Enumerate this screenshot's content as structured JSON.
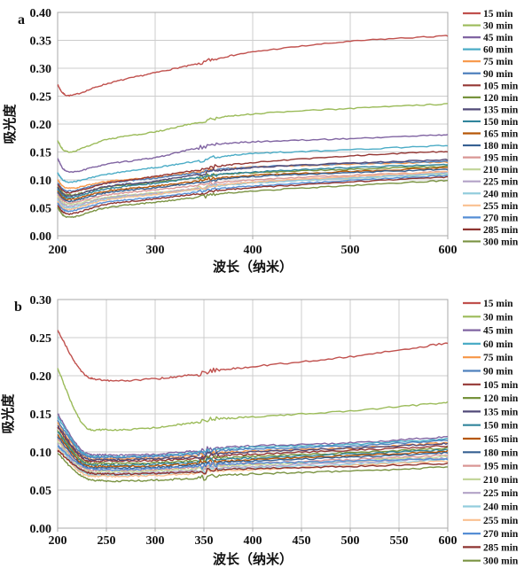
{
  "figure": {
    "panel_labels": [
      "a",
      "b"
    ]
  },
  "chart_data": [
    {
      "type": "line",
      "panel_label": "a",
      "xlabel": "波长（纳米）",
      "ylabel": "吸光度",
      "xlim": [
        200,
        600
      ],
      "ylim": [
        0,
        0.4
      ],
      "xticks": [
        200,
        300,
        400,
        500,
        600
      ],
      "ytick_labels": [
        "0.00",
        "0.05",
        "0.10",
        "0.15",
        "0.20",
        "0.25",
        "0.30",
        "0.35",
        "0.40"
      ],
      "grid": true,
      "legend_position": "right",
      "x": [
        200,
        212,
        250,
        300,
        350,
        400,
        500,
        600
      ],
      "series": [
        {
          "name": "15 min",
          "color": "#C0504D",
          "y": [
            0.27,
            0.251,
            0.272,
            0.292,
            0.31,
            0.327,
            0.346,
            0.356
          ]
        },
        {
          "name": "30 min",
          "color": "#9BBB59",
          "y": [
            0.17,
            0.15,
            0.172,
            0.186,
            0.205,
            0.216,
            0.226,
            0.234
          ]
        },
        {
          "name": "45 min",
          "color": "#8064A2",
          "y": [
            0.138,
            0.114,
            0.128,
            0.14,
            0.159,
            0.166,
            0.172,
            0.179
          ]
        },
        {
          "name": "60 min",
          "color": "#4BACC6",
          "y": [
            0.112,
            0.096,
            0.11,
            0.122,
            0.135,
            0.145,
            0.152,
            0.16
          ]
        },
        {
          "name": "75 min",
          "color": "#F79646",
          "y": [
            0.1,
            0.085,
            0.097,
            0.105,
            0.115,
            0.121,
            0.126,
            0.13
          ]
        },
        {
          "name": "90 min",
          "color": "#4F81BD",
          "y": [
            0.095,
            0.08,
            0.094,
            0.103,
            0.114,
            0.121,
            0.127,
            0.131
          ]
        },
        {
          "name": "105 min",
          "color": "#953734",
          "y": [
            0.092,
            0.077,
            0.094,
            0.106,
            0.119,
            0.129,
            0.141,
            0.149
          ]
        },
        {
          "name": "120 min",
          "color": "#77933C",
          "y": [
            0.088,
            0.073,
            0.087,
            0.096,
            0.105,
            0.111,
            0.117,
            0.122
          ]
        },
        {
          "name": "135 min",
          "color": "#514A78",
          "y": [
            0.086,
            0.071,
            0.088,
            0.098,
            0.111,
            0.12,
            0.128,
            0.134
          ]
        },
        {
          "name": "150 min",
          "color": "#31859C",
          "y": [
            0.083,
            0.068,
            0.084,
            0.094,
            0.105,
            0.112,
            0.12,
            0.126
          ]
        },
        {
          "name": "165 min",
          "color": "#B65708",
          "y": [
            0.08,
            0.065,
            0.08,
            0.089,
            0.099,
            0.106,
            0.113,
            0.12
          ]
        },
        {
          "name": "180 min",
          "color": "#366092",
          "y": [
            0.077,
            0.062,
            0.077,
            0.086,
            0.096,
            0.104,
            0.111,
            0.117
          ]
        },
        {
          "name": "195 min",
          "color": "#D99694",
          "y": [
            0.074,
            0.059,
            0.073,
            0.082,
            0.091,
            0.098,
            0.106,
            0.113
          ]
        },
        {
          "name": "210 min",
          "color": "#C3D69B",
          "y": [
            0.07,
            0.056,
            0.069,
            0.077,
            0.086,
            0.093,
            0.101,
            0.108
          ]
        },
        {
          "name": "225 min",
          "color": "#B3A2C7",
          "y": [
            0.067,
            0.053,
            0.067,
            0.076,
            0.086,
            0.094,
            0.103,
            0.111
          ]
        },
        {
          "name": "240 min",
          "color": "#93CDDD",
          "y": [
            0.064,
            0.05,
            0.065,
            0.074,
            0.084,
            0.092,
            0.101,
            0.109
          ]
        },
        {
          "name": "255 min",
          "color": "#FAC090",
          "y": [
            0.061,
            0.047,
            0.064,
            0.074,
            0.085,
            0.094,
            0.104,
            0.113
          ]
        },
        {
          "name": "270 min",
          "color": "#558ED5",
          "y": [
            0.058,
            0.044,
            0.06,
            0.069,
            0.079,
            0.087,
            0.097,
            0.106
          ]
        },
        {
          "name": "285 min",
          "color": "#8E3431",
          "y": [
            0.054,
            0.039,
            0.056,
            0.066,
            0.076,
            0.084,
            0.094,
            0.103
          ]
        },
        {
          "name": "300 min",
          "color": "#7A9342",
          "y": [
            0.05,
            0.033,
            0.05,
            0.06,
            0.07,
            0.078,
            0.088,
            0.097
          ]
        }
      ]
    },
    {
      "type": "line",
      "panel_label": "b",
      "xlabel": "波长（纳米）",
      "ylabel": "吸光度",
      "xlim": [
        200,
        600
      ],
      "ylim": [
        0,
        0.3
      ],
      "xticks": [
        200,
        250,
        300,
        350,
        400,
        450,
        500,
        550,
        600
      ],
      "ytick_labels": [
        "0.00",
        "0.05",
        "0.10",
        "0.15",
        "0.20",
        "0.25",
        "0.30"
      ],
      "grid": true,
      "legend_position": "right",
      "x": [
        200,
        225,
        250,
        300,
        350,
        400,
        500,
        600
      ],
      "series": [
        {
          "name": "15 min",
          "color": "#C0504D",
          "y": [
            0.26,
            0.205,
            0.194,
            0.196,
            0.203,
            0.21,
            0.223,
            0.241
          ]
        },
        {
          "name": "30 min",
          "color": "#9BBB59",
          "y": [
            0.21,
            0.138,
            0.129,
            0.132,
            0.14,
            0.144,
            0.152,
            0.163
          ]
        },
        {
          "name": "45 min",
          "color": "#8064A2",
          "y": [
            0.15,
            0.102,
            0.096,
            0.097,
            0.102,
            0.106,
            0.11,
            0.118
          ]
        },
        {
          "name": "60 min",
          "color": "#4BACC6",
          "y": [
            0.146,
            0.1,
            0.094,
            0.095,
            0.1,
            0.104,
            0.108,
            0.115
          ]
        },
        {
          "name": "75 min",
          "color": "#F79646",
          "y": [
            0.138,
            0.096,
            0.091,
            0.092,
            0.096,
            0.099,
            0.103,
            0.11
          ]
        },
        {
          "name": "90 min",
          "color": "#4F81BD",
          "y": [
            0.141,
            0.098,
            0.093,
            0.094,
            0.098,
            0.102,
            0.106,
            0.113
          ]
        },
        {
          "name": "105 min",
          "color": "#953734",
          "y": [
            0.132,
            0.092,
            0.088,
            0.089,
            0.092,
            0.095,
            0.1,
            0.106
          ]
        },
        {
          "name": "120 min",
          "color": "#77933C",
          "y": [
            0.128,
            0.089,
            0.085,
            0.086,
            0.089,
            0.092,
            0.097,
            0.103
          ]
        },
        {
          "name": "135 min",
          "color": "#514A78",
          "y": [
            0.135,
            0.094,
            0.09,
            0.091,
            0.094,
            0.098,
            0.103,
            0.109
          ]
        },
        {
          "name": "150 min",
          "color": "#31859C",
          "y": [
            0.126,
            0.087,
            0.083,
            0.084,
            0.087,
            0.09,
            0.095,
            0.101
          ]
        },
        {
          "name": "165 min",
          "color": "#B65708",
          "y": [
            0.123,
            0.085,
            0.081,
            0.082,
            0.085,
            0.088,
            0.093,
            0.099
          ]
        },
        {
          "name": "180 min",
          "color": "#366092",
          "y": [
            0.12,
            0.083,
            0.079,
            0.08,
            0.083,
            0.086,
            0.091,
            0.097
          ]
        },
        {
          "name": "195 min",
          "color": "#D99694",
          "y": [
            0.117,
            0.08,
            0.076,
            0.077,
            0.08,
            0.083,
            0.088,
            0.094
          ]
        },
        {
          "name": "210 min",
          "color": "#C3D69B",
          "y": [
            0.114,
            0.078,
            0.074,
            0.075,
            0.078,
            0.081,
            0.086,
            0.092
          ]
        },
        {
          "name": "225 min",
          "color": "#B3A2C7",
          "y": [
            0.111,
            0.076,
            0.072,
            0.073,
            0.076,
            0.079,
            0.084,
            0.09
          ]
        },
        {
          "name": "240 min",
          "color": "#93CDDD",
          "y": [
            0.108,
            0.074,
            0.07,
            0.071,
            0.074,
            0.077,
            0.082,
            0.088
          ]
        },
        {
          "name": "255 min",
          "color": "#FAC090",
          "y": [
            0.105,
            0.072,
            0.068,
            0.069,
            0.072,
            0.075,
            0.08,
            0.086
          ]
        },
        {
          "name": "270 min",
          "color": "#558ED5",
          "y": [
            0.108,
            0.082,
            0.077,
            0.078,
            0.081,
            0.083,
            0.086,
            0.089
          ]
        },
        {
          "name": "285 min",
          "color": "#8E3431",
          "y": [
            0.102,
            0.076,
            0.071,
            0.072,
            0.074,
            0.076,
            0.079,
            0.083
          ]
        },
        {
          "name": "300 min",
          "color": "#7A9342",
          "y": [
            0.098,
            0.068,
            0.062,
            0.063,
            0.066,
            0.069,
            0.073,
            0.078
          ]
        }
      ]
    }
  ]
}
